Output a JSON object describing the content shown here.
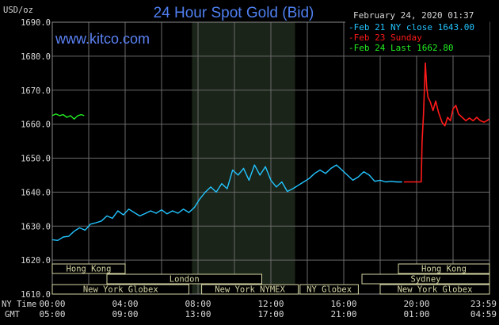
{
  "header": {
    "title": "24 Hour Spot Gold (Bid)",
    "timestamp": "February 24, 2020 01:37",
    "brand": "www.kitco.com"
  },
  "colors": {
    "background": "#000000",
    "grid": "#6a6a6a",
    "london_shade": "#1a2418",
    "feb21": "#22c4ff",
    "feb23": "#ff1a1a",
    "feb24": "#22ee22",
    "market_box": "#d6d6a6",
    "title": "#4f7ff0",
    "brand": "#5b82f5"
  },
  "chart_data": {
    "type": "line",
    "title": "24 Hour Spot Gold (Bid)",
    "ylabel": "USD/oz",
    "ylim": [
      1610,
      1690
    ],
    "y_ticks": [
      "1690.0",
      "1680.0",
      "1670.0",
      "1660.0",
      "1650.0",
      "1640.0",
      "1630.0",
      "1620.0",
      "1610.0"
    ],
    "xlim": [
      0,
      24
    ],
    "x_ticks_ny": [
      "00:00",
      "04:00",
      "08:00",
      "12:00",
      "16:00",
      "20:00",
      "23:59"
    ],
    "x_ticks_gmt": [
      "05:00",
      "09:00",
      "13:00",
      "17:00",
      "21:00",
      "01:00",
      "04:59"
    ],
    "x_row_labels": [
      "NY Time",
      "GMT"
    ],
    "grid": true,
    "legend_position": "top-right",
    "shaded_session": {
      "start": 7.67,
      "end": 13.33
    },
    "legend": [
      {
        "label": "Feb 21 NY close 1643.00",
        "color": "#22c4ff"
      },
      {
        "label": "Feb 23 Sunday",
        "color": "#ff1a1a"
      },
      {
        "label": "Feb 24 Last 1662.80",
        "color": "#22ee22"
      }
    ],
    "series": [
      {
        "name": "Feb 21 NY close 1643.00",
        "color": "#22c4ff",
        "points": [
          [
            0.0,
            1626.0
          ],
          [
            0.3,
            1625.8
          ],
          [
            0.6,
            1626.8
          ],
          [
            0.9,
            1627.0
          ],
          [
            1.2,
            1628.5
          ],
          [
            1.5,
            1629.5
          ],
          [
            1.8,
            1628.8
          ],
          [
            2.1,
            1630.6
          ],
          [
            2.4,
            1631.0
          ],
          [
            2.7,
            1631.5
          ],
          [
            3.0,
            1633.0
          ],
          [
            3.3,
            1632.3
          ],
          [
            3.6,
            1634.5
          ],
          [
            3.9,
            1633.3
          ],
          [
            4.2,
            1635.0
          ],
          [
            4.5,
            1634.0
          ],
          [
            4.8,
            1633.0
          ],
          [
            5.1,
            1633.7
          ],
          [
            5.4,
            1634.5
          ],
          [
            5.7,
            1633.8
          ],
          [
            6.0,
            1634.8
          ],
          [
            6.3,
            1633.6
          ],
          [
            6.6,
            1634.5
          ],
          [
            6.9,
            1633.8
          ],
          [
            7.2,
            1635.0
          ],
          [
            7.5,
            1634.0
          ],
          [
            7.8,
            1635.5
          ],
          [
            8.1,
            1638.0
          ],
          [
            8.4,
            1640.0
          ],
          [
            8.7,
            1641.5
          ],
          [
            9.0,
            1640.0
          ],
          [
            9.3,
            1642.5
          ],
          [
            9.6,
            1641.0
          ],
          [
            9.9,
            1646.5
          ],
          [
            10.2,
            1645.0
          ],
          [
            10.5,
            1647.0
          ],
          [
            10.8,
            1643.5
          ],
          [
            11.1,
            1648.0
          ],
          [
            11.4,
            1645.0
          ],
          [
            11.7,
            1647.5
          ],
          [
            12.0,
            1643.5
          ],
          [
            12.3,
            1641.5
          ],
          [
            12.6,
            1643.0
          ],
          [
            12.9,
            1640.2
          ],
          [
            13.2,
            1641.0
          ],
          [
            13.5,
            1642.0
          ],
          [
            13.8,
            1643.0
          ],
          [
            14.1,
            1644.0
          ],
          [
            14.4,
            1645.5
          ],
          [
            14.7,
            1646.5
          ],
          [
            15.0,
            1645.5
          ],
          [
            15.3,
            1647.0
          ],
          [
            15.6,
            1648.0
          ],
          [
            15.9,
            1646.5
          ],
          [
            16.2,
            1645.0
          ],
          [
            16.5,
            1643.5
          ],
          [
            16.8,
            1644.5
          ],
          [
            17.1,
            1646.0
          ],
          [
            17.4,
            1645.0
          ],
          [
            17.7,
            1643.2
          ],
          [
            18.0,
            1643.5
          ],
          [
            18.3,
            1643.0
          ],
          [
            18.6,
            1643.2
          ],
          [
            18.9,
            1643.0
          ],
          [
            19.2,
            1643.0
          ]
        ]
      },
      {
        "name": "Feb 23 Sunday",
        "color": "#ff1a1a",
        "points": [
          [
            19.3,
            1643.0
          ],
          [
            20.0,
            1643.0
          ],
          [
            20.25,
            1643.0
          ],
          [
            20.3,
            1655.0
          ],
          [
            20.38,
            1663.0
          ],
          [
            20.48,
            1678.0
          ],
          [
            20.55,
            1671.0
          ],
          [
            20.62,
            1668.0
          ],
          [
            20.75,
            1666.5
          ],
          [
            20.9,
            1664.0
          ],
          [
            21.05,
            1666.8
          ],
          [
            21.2,
            1663.5
          ],
          [
            21.4,
            1660.5
          ],
          [
            21.55,
            1659.5
          ],
          [
            21.7,
            1662.0
          ],
          [
            21.85,
            1661.0
          ],
          [
            22.0,
            1664.5
          ],
          [
            22.15,
            1665.5
          ],
          [
            22.3,
            1663.0
          ],
          [
            22.5,
            1662.0
          ],
          [
            22.7,
            1661.0
          ],
          [
            22.9,
            1661.8
          ],
          [
            23.1,
            1661.0
          ],
          [
            23.3,
            1662.0
          ],
          [
            23.5,
            1661.0
          ],
          [
            23.7,
            1660.6
          ],
          [
            23.85,
            1661.0
          ],
          [
            23.98,
            1661.5
          ]
        ]
      },
      {
        "name": "Feb 24 Last 1662.80",
        "color": "#22ee22",
        "points": [
          [
            0.0,
            1662.5
          ],
          [
            0.2,
            1663.0
          ],
          [
            0.4,
            1662.5
          ],
          [
            0.6,
            1662.8
          ],
          [
            0.8,
            1662.0
          ],
          [
            1.0,
            1662.5
          ],
          [
            1.2,
            1661.5
          ],
          [
            1.4,
            1662.5
          ],
          [
            1.6,
            1662.8
          ],
          [
            1.75,
            1662.5
          ]
        ]
      }
    ]
  },
  "markets": [
    {
      "label": "Hong Kong",
      "row": 0,
      "start": 0.0,
      "end": 4.0
    },
    {
      "label": "London",
      "row": 1,
      "start": 3.0,
      "end": 11.5
    },
    {
      "label": "New York Globex",
      "row": 2,
      "start": 0.0,
      "end": 7.5
    },
    {
      "label": "New York NYMEX",
      "row": 2,
      "start": 8.2,
      "end": 13.5
    },
    {
      "label": "NY Globex",
      "row": 2,
      "start": 13.6,
      "end": 16.8
    },
    {
      "label": "Sydney",
      "row": 1,
      "start": 17.0,
      "end": 24.0
    },
    {
      "label": "Hong Kong",
      "row": 0,
      "start": 19.0,
      "end": 24.0
    },
    {
      "label": "New York Globex",
      "row": 2,
      "start": 18.0,
      "end": 24.0
    }
  ]
}
